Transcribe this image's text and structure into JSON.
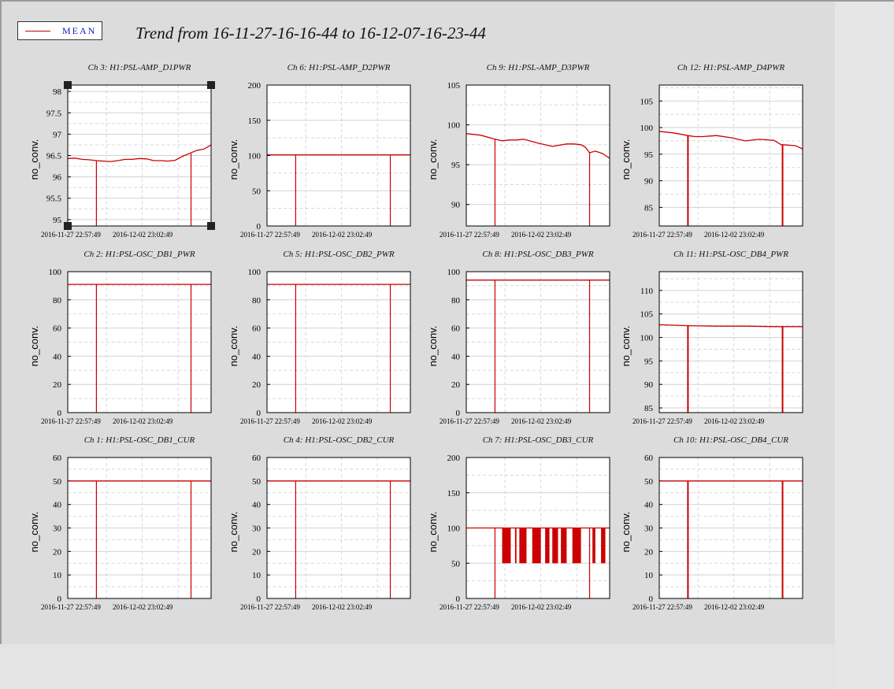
{
  "legend": {
    "label": "MEAN",
    "color": "#cc0000"
  },
  "title": "Trend from 16-11-27-16-16-44 to 16-12-07-16-23-44",
  "x_tick_labels": [
    "2016-11-27 22:57:49",
    "2016-12-02 23:02:49"
  ],
  "chart_data": [
    {
      "type": "line",
      "title": "Ch 3: H1:PSL-AMP_D1PWR",
      "ylabel": "no_conv.",
      "ylim": [
        94.85,
        98.15
      ],
      "yticks": [
        95,
        95.5,
        96,
        96.5,
        97,
        97.5,
        98
      ],
      "grid": true,
      "selected": true,
      "series": [
        {
          "x": [
            0,
            0.05,
            0.1,
            0.15,
            0.2,
            0.25,
            0.3,
            0.35,
            0.4,
            0.45,
            0.5,
            0.55,
            0.6,
            0.65,
            0.7,
            0.75,
            0.8,
            0.85,
            0.9,
            0.95,
            1.0
          ],
          "values": [
            96.43,
            96.44,
            96.41,
            96.4,
            96.38,
            96.37,
            96.36,
            96.38,
            96.41,
            96.41,
            96.43,
            96.42,
            96.38,
            96.38,
            96.37,
            96.39,
            96.48,
            96.55,
            96.62,
            96.65,
            96.75
          ]
        }
      ],
      "dropouts": [
        0.2,
        0.86
      ]
    },
    {
      "type": "line",
      "title": "Ch 6: H1:PSL-AMP_D2PWR",
      "ylabel": "no_conv.",
      "ylim": [
        0,
        200
      ],
      "yticks": [
        0,
        50,
        100,
        150,
        200
      ],
      "grid": true,
      "series": [
        {
          "x": [
            0,
            1
          ],
          "values": [
            101,
            101
          ]
        }
      ],
      "dropouts": [
        0.2,
        0.86
      ]
    },
    {
      "type": "line",
      "title": "Ch 9: H1:PSL-AMP_D3PWR",
      "ylabel": "no_conv.",
      "ylim": [
        87.3,
        105
      ],
      "yticks": [
        90,
        95,
        100,
        105
      ],
      "grid": true,
      "series": [
        {
          "x": [
            0,
            0.1,
            0.2,
            0.25,
            0.3,
            0.35,
            0.4,
            0.5,
            0.6,
            0.7,
            0.75,
            0.8,
            0.83,
            0.86,
            0.9,
            0.95,
            1.0
          ],
          "values": [
            98.9,
            98.7,
            98.2,
            98.0,
            98.1,
            98.1,
            98.2,
            97.7,
            97.3,
            97.6,
            97.6,
            97.5,
            97.2,
            96.5,
            96.7,
            96.4,
            95.8
          ]
        }
      ],
      "dropouts": [
        0.2,
        0.86
      ]
    },
    {
      "type": "line",
      "title": "Ch 12: H1:PSL-AMP_D4PWR",
      "ylabel": "no_conv.",
      "ylim": [
        81.5,
        108
      ],
      "yticks": [
        85,
        90,
        95,
        100,
        105
      ],
      "grid": true,
      "series": [
        {
          "x": [
            0,
            0.1,
            0.2,
            0.25,
            0.3,
            0.35,
            0.4,
            0.5,
            0.6,
            0.7,
            0.8,
            0.85,
            0.9,
            0.95,
            1.0
          ],
          "values": [
            99.3,
            99.0,
            98.5,
            98.3,
            98.3,
            98.4,
            98.5,
            98.1,
            97.5,
            97.8,
            97.6,
            96.8,
            96.7,
            96.6,
            96.0
          ]
        }
      ],
      "dropouts": [
        0.2,
        0.86
      ]
    },
    {
      "type": "line",
      "title": "Ch 2: H1:PSL-OSC_DB1_PWR",
      "ylabel": "no_conv.",
      "ylim": [
        0,
        100
      ],
      "yticks": [
        0,
        20,
        40,
        60,
        80,
        100
      ],
      "grid": true,
      "series": [
        {
          "x": [
            0,
            1
          ],
          "values": [
            91,
            91
          ]
        }
      ],
      "dropouts": [
        0.2,
        0.86
      ]
    },
    {
      "type": "line",
      "title": "Ch 5: H1:PSL-OSC_DB2_PWR",
      "ylabel": "no_conv.",
      "ylim": [
        0,
        100
      ],
      "yticks": [
        0,
        20,
        40,
        60,
        80,
        100
      ],
      "grid": true,
      "series": [
        {
          "x": [
            0,
            1
          ],
          "values": [
            91,
            91
          ]
        }
      ],
      "dropouts": [
        0.2,
        0.86
      ]
    },
    {
      "type": "line",
      "title": "Ch 8: H1:PSL-OSC_DB3_PWR",
      "ylabel": "no_conv.",
      "ylim": [
        0,
        100
      ],
      "yticks": [
        0,
        20,
        40,
        60,
        80,
        100
      ],
      "grid": true,
      "series": [
        {
          "x": [
            0,
            1
          ],
          "values": [
            94,
            94
          ]
        }
      ],
      "dropouts": [
        0.2,
        0.86
      ]
    },
    {
      "type": "line",
      "title": "Ch 11: H1:PSL-OSC_DB4_PWR",
      "ylabel": "no_conv.",
      "ylim": [
        84,
        114
      ],
      "yticks": [
        85,
        90,
        95,
        100,
        105,
        110
      ],
      "grid": true,
      "series": [
        {
          "x": [
            0,
            0.2,
            0.4,
            0.6,
            0.8,
            1.0
          ],
          "values": [
            102.7,
            102.5,
            102.4,
            102.4,
            102.3,
            102.3
          ]
        }
      ],
      "dropouts": [
        0.2,
        0.86
      ]
    },
    {
      "type": "line",
      "title": "Ch 1: H1:PSL-OSC_DB1_CUR",
      "ylabel": "no_conv.",
      "ylim": [
        0,
        60
      ],
      "yticks": [
        0,
        10,
        20,
        30,
        40,
        50,
        60
      ],
      "grid": true,
      "series": [
        {
          "x": [
            0,
            1
          ],
          "values": [
            50,
            50
          ]
        }
      ],
      "dropouts": [
        0.2,
        0.86
      ]
    },
    {
      "type": "line",
      "title": "Ch 4: H1:PSL-OSC_DB2_CUR",
      "ylabel": "no_conv.",
      "ylim": [
        0,
        60
      ],
      "yticks": [
        0,
        10,
        20,
        30,
        40,
        50,
        60
      ],
      "grid": true,
      "series": [
        {
          "x": [
            0,
            1
          ],
          "values": [
            50,
            50
          ]
        }
      ],
      "dropouts": [
        0.2,
        0.86
      ]
    },
    {
      "type": "line",
      "title": "Ch 7: H1:PSL-OSC_DB3_CUR",
      "ylabel": "no_conv.",
      "ylim": [
        0,
        200
      ],
      "yticks": [
        0,
        50,
        100,
        150,
        200
      ],
      "grid": true,
      "series": [
        {
          "x": [
            0,
            1
          ],
          "values": [
            100,
            100
          ]
        }
      ],
      "dropouts": [
        0.2,
        0.86
      ],
      "bursts": [
        [
          0.25,
          0.31
        ],
        [
          0.34,
          0.35
        ],
        [
          0.37,
          0.42
        ],
        [
          0.46,
          0.52
        ],
        [
          0.55,
          0.58
        ],
        [
          0.6,
          0.64
        ],
        [
          0.66,
          0.7
        ],
        [
          0.74,
          0.8
        ],
        [
          0.88,
          0.9
        ],
        [
          0.94,
          0.97
        ]
      ],
      "burst_low": 50
    },
    {
      "type": "line",
      "title": "Ch 10: H1:PSL-OSC_DB4_CUR",
      "ylabel": "no_conv.",
      "ylim": [
        0,
        60
      ],
      "yticks": [
        0,
        10,
        20,
        30,
        40,
        50,
        60
      ],
      "grid": true,
      "series": [
        {
          "x": [
            0,
            1
          ],
          "values": [
            50,
            50
          ]
        }
      ],
      "dropouts": [
        0.2,
        0.86
      ]
    }
  ]
}
